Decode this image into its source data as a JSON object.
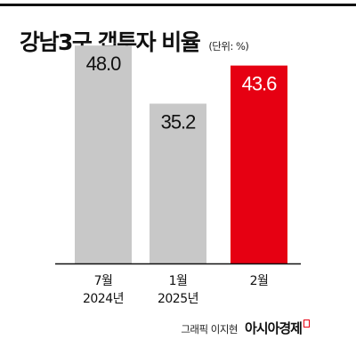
{
  "header": {
    "title": "강남3구 갭투자 비율",
    "unit": "(단위: %)"
  },
  "footer": {
    "credit": "그래픽 이지현",
    "publisher": "아시아경제"
  },
  "colors": {
    "bar_default": "#c8c8c8",
    "bar_highlight": "#e60012",
    "value_default": "#111111",
    "value_highlight": "#ffffff",
    "axis": "#111111"
  },
  "chart_data": {
    "type": "bar",
    "title": "강남3구 갭투자 비율",
    "unit": "%",
    "categories": [
      [
        "7월",
        "2024년"
      ],
      [
        "1월",
        "2025년"
      ],
      [
        "2월"
      ]
    ],
    "values": [
      48.0,
      35.2,
      43.6
    ],
    "value_labels": [
      "48.0",
      "35.2",
      "43.6"
    ],
    "highlight_index": 2,
    "ylim": [
      0,
      50
    ],
    "grid": false
  }
}
